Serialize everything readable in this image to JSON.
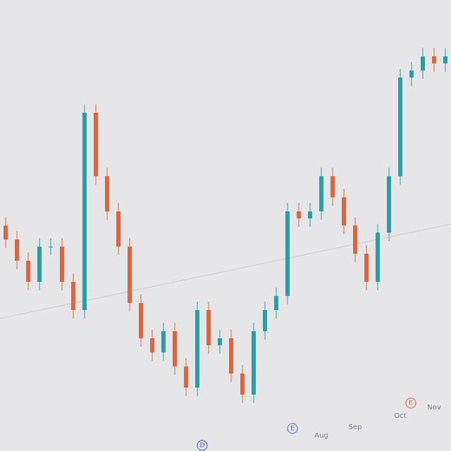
{
  "chart_data": {
    "type": "candlestick",
    "categories": [
      null,
      null,
      null,
      null,
      null,
      null,
      null,
      null,
      null,
      null,
      null,
      null,
      null,
      null,
      null,
      null,
      null,
      null,
      null,
      null,
      null,
      null,
      null,
      null,
      null,
      null,
      null,
      null,
      "Aug",
      null,
      null,
      "Sep",
      null,
      null,
      null,
      "Oct",
      null,
      null,
      "Nov",
      null
    ],
    "open": [
      320,
      300,
      270,
      240,
      290,
      290,
      240,
      200,
      480,
      390,
      340,
      290,
      210,
      160,
      140,
      170,
      120,
      90,
      200,
      150,
      160,
      110,
      80,
      170,
      200,
      220,
      340,
      330,
      340,
      390,
      360,
      320,
      280,
      240,
      310,
      390,
      530,
      540,
      560,
      550
    ],
    "high": [
      332,
      312,
      282,
      302,
      302,
      302,
      252,
      492,
      492,
      402,
      352,
      302,
      222,
      172,
      182,
      182,
      132,
      212,
      212,
      172,
      172,
      122,
      182,
      212,
      232,
      352,
      352,
      352,
      402,
      402,
      372,
      332,
      292,
      322,
      402,
      542,
      552,
      572,
      572,
      572
    ],
    "low": [
      288,
      258,
      228,
      228,
      278,
      228,
      188,
      188,
      378,
      328,
      278,
      198,
      148,
      128,
      128,
      108,
      78,
      78,
      138,
      138,
      98,
      68,
      68,
      158,
      188,
      208,
      318,
      318,
      328,
      348,
      308,
      268,
      228,
      228,
      298,
      378,
      518,
      528,
      538,
      538
    ],
    "close": [
      300,
      270,
      240,
      290,
      290,
      240,
      200,
      480,
      390,
      340,
      290,
      210,
      160,
      140,
      170,
      120,
      90,
      200,
      150,
      160,
      110,
      80,
      170,
      200,
      220,
      340,
      330,
      340,
      390,
      360,
      320,
      280,
      240,
      310,
      390,
      530,
      540,
      560,
      550,
      560
    ],
    "up_color": "#2a9fa6",
    "down_color": "#e0653e",
    "ylim": [
      0,
      640
    ],
    "annotations": [
      "E",
      "D",
      "E"
    ]
  }
}
